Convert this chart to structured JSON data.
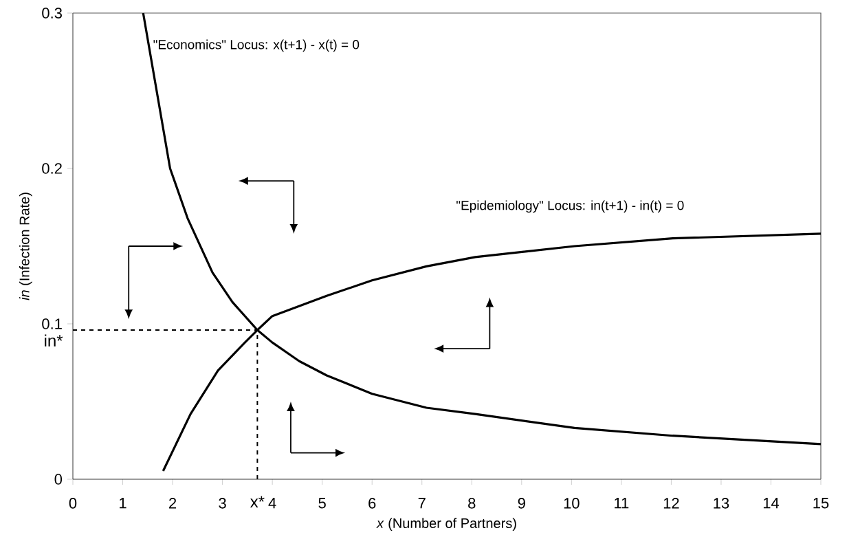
{
  "chart_data": {
    "type": "line",
    "xlabel": "*x* (Number of Partners)",
    "ylabel": "*in* (Infection Rate)",
    "xlim": [
      0,
      15
    ],
    "ylim": [
      0,
      0.3
    ],
    "xticks": [
      0,
      1,
      2,
      3,
      4,
      5,
      6,
      7,
      8,
      9,
      10,
      11,
      12,
      13,
      14,
      15
    ],
    "yticks": [
      0,
      0.1,
      0.2,
      0.3
    ],
    "grid": false,
    "series": [
      {
        "name": "\"Economics\" Locus:   x(t+1) - x(t) = 0",
        "color": "#000000",
        "x": [
          1.41,
          1.95,
          2.3,
          2.8,
          3.2,
          3.7,
          4.0,
          4.54,
          5.09,
          6.0,
          7.09,
          8.07,
          10.06,
          12.03,
          15
        ],
        "values": [
          0.3,
          0.2,
          0.168,
          0.133,
          0.114,
          0.096,
          0.088,
          0.076,
          0.0668,
          0.055,
          0.046,
          0.042,
          0.033,
          0.028,
          0.0226
        ]
      },
      {
        "name": "\"Epidemiology\" Locus:  in(t+1) - in(t) = 0",
        "color": "#000000",
        "x": [
          1.81,
          2.36,
          2.91,
          3.45,
          3.7,
          4.0,
          5.09,
          6.0,
          7.09,
          8.07,
          10.06,
          12.03,
          15
        ],
        "values": [
          0.0053,
          0.042,
          0.07,
          0.088,
          0.096,
          0.105,
          0.118,
          0.128,
          0.137,
          0.143,
          0.15,
          0.155,
          0.158
        ]
      },
      {
        "color": "#000000",
        "line_style": "dashed",
        "x": [
          0,
          3.7
        ],
        "values": [
          0.096,
          0.096
        ]
      },
      {
        "color": "#000000",
        "line_style": "dashed",
        "x": [
          3.7,
          3.7
        ],
        "values": [
          0,
          0.096
        ]
      }
    ],
    "annotations": [
      {
        "text": "x*",
        "x": 3.7,
        "y": 0
      },
      {
        "text": "in*",
        "x": 0,
        "y": 0.096
      }
    ]
  }
}
